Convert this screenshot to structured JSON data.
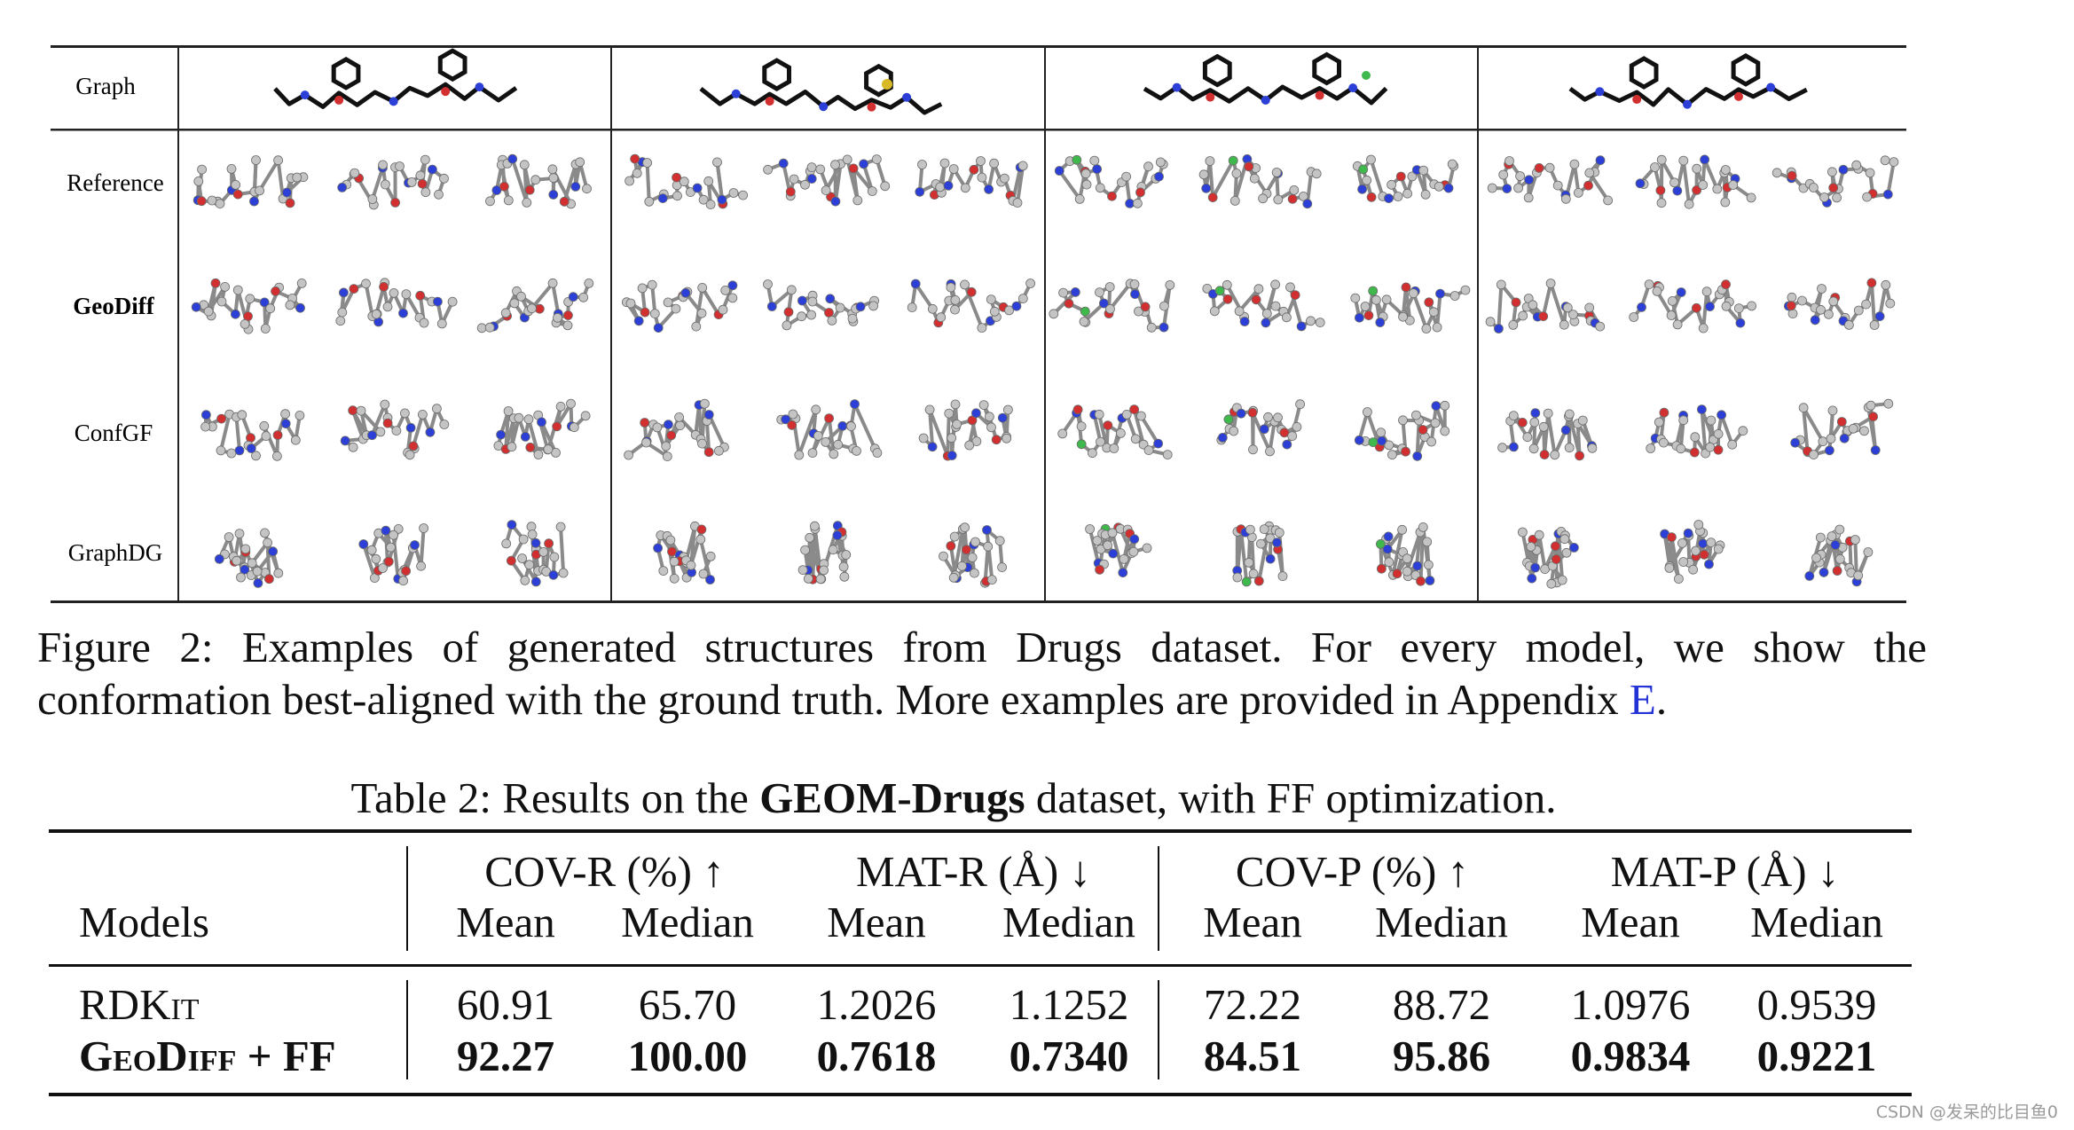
{
  "figure": {
    "row_labels": [
      "Graph",
      "Reference",
      "GeoDiff",
      "ConfGF",
      "GraphDG"
    ],
    "bold_row": "GeoDiff",
    "caption_line1": "Figure 2: Examples of generated structures from Drugs dataset. For every model, we show the",
    "caption_line2_text": "conformation best-aligned with the ground truth. More examples are provided in Appendix",
    "caption_link": "E",
    "caption_end": "."
  },
  "table": {
    "caption_pre": "Table 2: Results on the ",
    "caption_bold": "GEOM-Drugs",
    "caption_post": " dataset, with FF optimization.",
    "models_header": "Models",
    "groups": [
      "COV-R (%) ↑",
      "MAT-R (Å) ↓",
      "COV-P (%) ↑",
      "MAT-P (Å) ↓"
    ],
    "subheaders": [
      "Mean",
      "Median",
      "Mean",
      "Median",
      "Mean",
      "Median",
      "Mean",
      "Median"
    ],
    "rows": [
      {
        "model": "RDKit",
        "values": [
          "60.91",
          "65.70",
          "1.2026",
          "1.1252",
          "72.22",
          "88.72",
          "1.0976",
          "0.9539"
        ]
      },
      {
        "model": "GeoDiff + FF",
        "values": [
          "92.27",
          "100.00",
          "0.7618",
          "0.7340",
          "84.51",
          "95.86",
          "0.9834",
          "0.9221"
        ]
      }
    ]
  },
  "watermark": "CSDN @发呆的比目鱼0",
  "colors": {
    "carbon": "#c4c4c4",
    "oxygen": "#d23030",
    "nitrogen": "#2c3fd6",
    "sulfur": "#d8b928",
    "halogen": "#3fb84c",
    "link": "#2433d6"
  }
}
